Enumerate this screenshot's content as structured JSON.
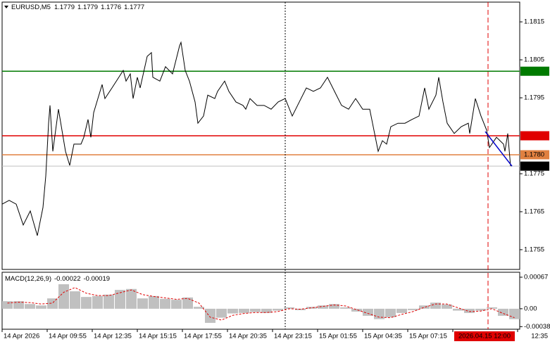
{
  "chart_data": [
    {
      "type": "line",
      "title": "EURUSD,M5",
      "ohlc": [
        1.1779,
        1.1779,
        1.1776,
        1.1777
      ],
      "color": "#000000",
      "x": [
        0,
        5,
        10,
        15,
        20,
        25,
        29,
        31,
        33,
        34,
        36,
        40,
        45,
        48,
        51,
        56,
        58,
        61,
        63,
        65,
        71,
        73,
        78,
        86,
        88,
        91,
        93,
        96,
        98,
        103,
        106,
        107,
        112,
        116,
        121,
        126,
        127,
        130,
        133,
        137,
        139,
        143,
        146,
        151,
        153,
        158,
        161,
        166,
        171,
        173,
        176,
        181,
        186,
        191,
        196,
        201,
        206,
        211,
        216,
        221,
        226,
        231,
        236,
        241,
        246,
        251,
        256,
        261,
        263,
        267,
        270,
        273,
        276,
        281,
        286,
        291,
        296,
        300,
        303,
        308,
        310,
        313,
        316,
        321,
        326,
        331,
        332,
        336,
        340,
        344,
        346,
        351,
        356,
        357,
        359,
        361
      ],
      "values": [
        1.1767,
        1.1768,
        1.1767,
        1.17615,
        1.17652,
        1.17587,
        1.17661,
        1.17744,
        1.17883,
        1.1793,
        1.17809,
        1.1792,
        1.17809,
        1.17772,
        1.17828,
        1.17828,
        1.17846,
        1.17893,
        1.17846,
        1.17911,
        1.17985,
        1.17948,
        1.17976,
        1.18022,
        1.17994,
        1.18013,
        1.17948,
        1.18004,
        1.17976,
        1.18059,
        1.18069,
        1.18004,
        1.17994,
        1.18032,
        1.18013,
        1.18087,
        1.18096,
        1.18022,
        1.17994,
        1.17939,
        1.17883,
        1.17902,
        1.17957,
        1.17948,
        1.17967,
        1.17994,
        1.17967,
        1.17939,
        1.1793,
        1.1792,
        1.17948,
        1.1793,
        1.1793,
        1.1792,
        1.17939,
        1.17948,
        1.17902,
        1.17939,
        1.17976,
        1.17967,
        1.17976,
        1.18004,
        1.17967,
        1.1793,
        1.1792,
        1.17948,
        1.1792,
        1.1792,
        1.17883,
        1.17809,
        1.17837,
        1.17828,
        1.17874,
        1.17883,
        1.17883,
        1.17893,
        1.17902,
        1.17976,
        1.1792,
        1.17957,
        1.18004,
        1.17939,
        1.17883,
        1.17856,
        1.17874,
        1.17883,
        1.17856,
        1.17948,
        1.17902,
        1.17865,
        1.17819,
        1.17846,
        1.17828,
        1.17809,
        1.17856,
        1.1777
      ],
      "xlim": [
        0,
        367
      ],
      "ylim": [
        1.17498,
        1.18202
      ],
      "yticks": [
        1.1755,
        1.1765,
        1.1775,
        1.1795,
        1.1805,
        1.1815
      ],
      "xticks": [
        {
          "value": 0,
          "label": "14 Apr 2026"
        },
        {
          "value": 32,
          "label": "14 Apr 09:55"
        },
        {
          "value": 64,
          "label": "14 Apr 12:35"
        },
        {
          "value": 96,
          "label": "14 Apr 15:15"
        },
        {
          "value": 128,
          "label": "14 Apr 17:55"
        },
        {
          "value": 160,
          "label": "14 Apr 20:35"
        },
        {
          "value": 192,
          "label": "14 Apr 23:15"
        },
        {
          "value": 224,
          "label": "15 Apr 01:55"
        },
        {
          "value": 256,
          "label": "15 Apr 04:35"
        },
        {
          "value": 288,
          "label": "15 Apr 07:15"
        },
        {
          "value": 320,
          "label": "15"
        },
        {
          "value": 366,
          "label": "12:35"
        }
      ],
      "levels": [
        {
          "value": 1.1802,
          "color": "#007a00",
          "label_background": "#007a00"
        },
        {
          "value": 1.1785,
          "color": "#e00000",
          "label_background": "#e00000"
        },
        {
          "value": 1.178,
          "label": "1.1780",
          "color": "#e08040",
          "label_background": "#e08040"
        },
        {
          "value": 1.1777,
          "color": "#c0c0c0",
          "label_background": "#000000"
        }
      ],
      "trendline": {
        "x": [
          343,
          362
        ],
        "values": [
          1.17861,
          1.1777
        ],
        "color": "#0000cc"
      },
      "vlines": [
        {
          "value": 201,
          "color": "#000000"
        },
        {
          "value": 345,
          "label": "2026.04.15 12:00",
          "color": "#e00000"
        }
      ]
    },
    {
      "type": "macd",
      "title": "MACD(12,26,9)",
      "current": [
        -0.00022,
        -0.00019
      ],
      "x": [
        0,
        8,
        16,
        24,
        32,
        40,
        48,
        56,
        64,
        72,
        80,
        88,
        96,
        104,
        112,
        120,
        128,
        136,
        144,
        152,
        160,
        168,
        176,
        184,
        192,
        200,
        208,
        216,
        224,
        232,
        240,
        248,
        256,
        264,
        272,
        280,
        288,
        296,
        304,
        312,
        320,
        328,
        336,
        344,
        352,
        360
      ],
      "histogram": {
        "color": "#c0c0c0",
        "values": [
          0.00016,
          0.00016,
          0.0001,
          7e-05,
          0.00022,
          0.00052,
          0.00037,
          0.00025,
          0.00027,
          0.0003,
          0.0004,
          0.00042,
          0.00022,
          0.00027,
          0.00021,
          0.00019,
          0.00024,
          4e-05,
          -0.0003,
          -0.00019,
          -0.0001,
          -9e-05,
          -7e-05,
          -9e-05,
          -4e-05,
          3e-05,
          -3e-05,
          4e-05,
          7e-05,
          0.0001,
          3e-05,
          -6e-05,
          -0.00015,
          -0.00022,
          -0.00018,
          -9e-05,
          -3e-05,
          7e-05,
          0.00013,
          9e-05,
          -4e-05,
          -9e-05,
          -4e-05,
          3e-05,
          -0.00015,
          -0.00022
        ]
      },
      "signal": {
        "color": "#e00000",
        "values": [
          0.00012,
          0.00014,
          0.00013,
          0.0001,
          0.00012,
          0.00035,
          0.00045,
          0.00033,
          0.00028,
          0.00028,
          0.00034,
          0.0004,
          0.0003,
          0.00026,
          0.00023,
          0.0002,
          0.00022,
          0.00012,
          -0.00018,
          -0.00024,
          -0.00014,
          -0.0001,
          -8e-05,
          -8e-05,
          -6e-05,
          0,
          -1e-05,
          2e-05,
          5e-05,
          8e-05,
          6e-05,
          -2e-05,
          -0.0001,
          -0.00018,
          -0.00019,
          -0.00012,
          -6e-05,
          3e-05,
          0.0001,
          0.0001,
          2e-05,
          -6e-05,
          -5e-05,
          0,
          -0.0001,
          -0.00019
        ]
      },
      "xlim": [
        0,
        367
      ],
      "ylim": [
        -0.00042,
        0.00076
      ],
      "yticks": [
        -0.00038,
        {
          "value": 0,
          "label": "0.00"
        },
        0.00067
      ]
    }
  ]
}
